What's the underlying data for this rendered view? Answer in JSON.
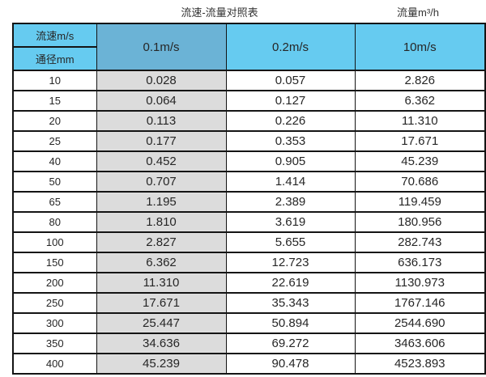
{
  "header": {
    "title": "流速-流量对照表",
    "unit_label": "流量m³/h"
  },
  "table": {
    "corner_top": "流速m/s",
    "corner_bottom": "通径mm",
    "columns": [
      "0.1m/s",
      "0.2m/s",
      "10m/s"
    ],
    "rows": [
      {
        "diameter": "10",
        "values": [
          "0.028",
          "0.057",
          "2.826"
        ]
      },
      {
        "diameter": "15",
        "values": [
          "0.064",
          "0.127",
          "6.362"
        ]
      },
      {
        "diameter": "20",
        "values": [
          "0.113",
          "0.226",
          "11.310"
        ]
      },
      {
        "diameter": "25",
        "values": [
          "0.177",
          "0.353",
          "17.671"
        ]
      },
      {
        "diameter": "40",
        "values": [
          "0.452",
          "0.905",
          "45.239"
        ]
      },
      {
        "diameter": "50",
        "values": [
          "0.707",
          "1.414",
          "70.686"
        ]
      },
      {
        "diameter": "65",
        "values": [
          "1.195",
          "2.389",
          "119.459"
        ]
      },
      {
        "diameter": "80",
        "values": [
          "1.810",
          "3.619",
          "180.956"
        ]
      },
      {
        "diameter": "100",
        "values": [
          "2.827",
          "5.655",
          "282.743"
        ]
      },
      {
        "diameter": "150",
        "values": [
          "6.362",
          "12.723",
          "636.173"
        ]
      },
      {
        "diameter": "200",
        "values": [
          "11.310",
          "22.619",
          "1130.973"
        ]
      },
      {
        "diameter": "250",
        "values": [
          "17.671",
          "35.343",
          "1767.146"
        ]
      },
      {
        "diameter": "300",
        "values": [
          "25.447",
          "50.894",
          "2544.690"
        ]
      },
      {
        "diameter": "350",
        "values": [
          "34.636",
          "69.272",
          "3463.606"
        ]
      },
      {
        "diameter": "400",
        "values": [
          "45.239",
          "90.478",
          "4523.893"
        ]
      }
    ]
  },
  "colors": {
    "header_light_blue": "#66CBF0",
    "header_dark_blue": "#6BB3D6",
    "shaded_column_gray": "#DCDCDC",
    "border_black": "#141414",
    "text_dark": "#262626"
  }
}
